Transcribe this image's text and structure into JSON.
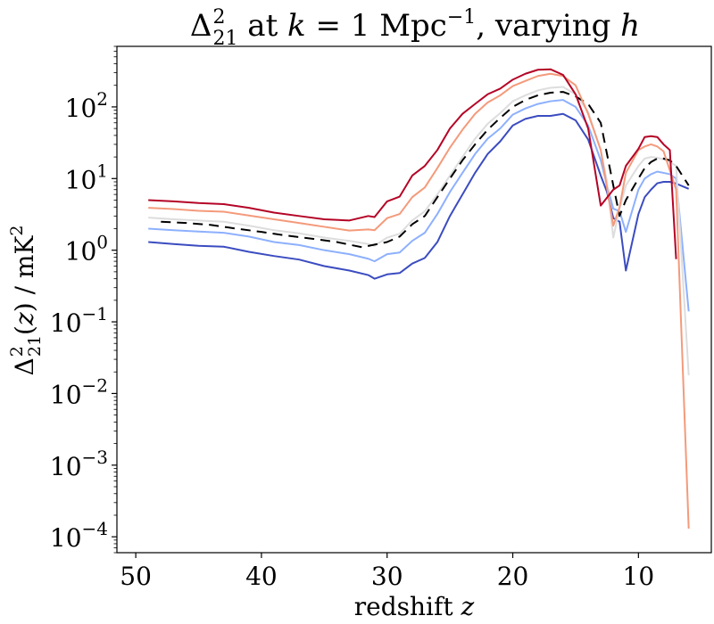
{
  "chart_data": {
    "type": "line",
    "title_parts": {
      "delta": "Δ",
      "sup": "2",
      "sub": "21",
      "at": " at ",
      "k": "k",
      "eq": " = 1 Mpc",
      "exp": "−1",
      "rest": ", varying ",
      "h": "h"
    },
    "xlabel_parts": {
      "text": "redshift ",
      "var": "z"
    },
    "ylabel_parts": {
      "delta": "Δ",
      "sup": "2",
      "sub": "21",
      "paren_open": "(",
      "z": "z",
      "rest": ") / mK",
      "unit_exp": "2"
    },
    "x_ticks": [
      {
        "value": 50,
        "label": "50"
      },
      {
        "value": 40,
        "label": "40"
      },
      {
        "value": 30,
        "label": "30"
      },
      {
        "value": 20,
        "label": "20"
      },
      {
        "value": 10,
        "label": "10"
      }
    ],
    "y_ticks": [
      {
        "value": 0.0001,
        "base": "10",
        "exp": "−4"
      },
      {
        "value": 0.001,
        "base": "10",
        "exp": "−3"
      },
      {
        "value": 0.01,
        "base": "10",
        "exp": "−2"
      },
      {
        "value": 0.1,
        "base": "10",
        "exp": "−1"
      },
      {
        "value": 1,
        "base": "10",
        "exp": "0"
      },
      {
        "value": 10,
        "base": "10",
        "exp": "1"
      },
      {
        "value": 100,
        "base": "10",
        "exp": "2"
      }
    ],
    "xlim": [
      51.5,
      4.2
    ],
    "ylim": [
      6e-05,
      700
    ],
    "yscale": "log",
    "x_inverted": true,
    "grid": false,
    "series": [
      {
        "color": "#3b4cc0",
        "dash": "solid",
        "points": [
          [
            49,
            1.3
          ],
          [
            47,
            1.22
          ],
          [
            45,
            1.15
          ],
          [
            43,
            1.12
          ],
          [
            41,
            0.95
          ],
          [
            39,
            0.83
          ],
          [
            37,
            0.74
          ],
          [
            35,
            0.6
          ],
          [
            33,
            0.52
          ],
          [
            31.5,
            0.45
          ],
          [
            31,
            0.4
          ],
          [
            30,
            0.46
          ],
          [
            29,
            0.48
          ],
          [
            28,
            0.65
          ],
          [
            27,
            0.78
          ],
          [
            26,
            1.3
          ],
          [
            25,
            3
          ],
          [
            24,
            6
          ],
          [
            23,
            12
          ],
          [
            22,
            22
          ],
          [
            21,
            33
          ],
          [
            20,
            55
          ],
          [
            19,
            68
          ],
          [
            18,
            75
          ],
          [
            17,
            75
          ],
          [
            16,
            80
          ],
          [
            15,
            65
          ],
          [
            14,
            35
          ],
          [
            13,
            11
          ],
          [
            12.5,
            6.5
          ],
          [
            12,
            2.8
          ],
          [
            11.5,
            2.5
          ],
          [
            11,
            0.52
          ],
          [
            10,
            3.2
          ],
          [
            9.5,
            5.5
          ],
          [
            9,
            7
          ],
          [
            8.5,
            8.6
          ],
          [
            8,
            9
          ],
          [
            7.5,
            9
          ],
          [
            7,
            8.5
          ],
          [
            6,
            7.2
          ]
        ]
      },
      {
        "color": "#8db0fe",
        "dash": "solid",
        "points": [
          [
            49,
            2
          ],
          [
            47,
            1.9
          ],
          [
            45,
            1.82
          ],
          [
            43,
            1.75
          ],
          [
            41,
            1.55
          ],
          [
            39,
            1.3
          ],
          [
            37,
            1.18
          ],
          [
            35,
            1
          ],
          [
            33,
            0.88
          ],
          [
            31.5,
            0.76
          ],
          [
            31,
            0.7
          ],
          [
            30,
            0.88
          ],
          [
            29,
            0.93
          ],
          [
            28,
            1.35
          ],
          [
            27,
            1.75
          ],
          [
            26,
            3.2
          ],
          [
            25,
            6.5
          ],
          [
            24,
            12
          ],
          [
            23,
            22
          ],
          [
            22,
            36
          ],
          [
            21,
            50
          ],
          [
            20,
            78
          ],
          [
            19,
            95
          ],
          [
            18,
            110
          ],
          [
            17,
            120
          ],
          [
            16,
            125
          ],
          [
            15,
            100
          ],
          [
            14,
            55
          ],
          [
            13,
            18
          ],
          [
            12.5,
            8
          ],
          [
            12,
            3.8
          ],
          [
            11.5,
            3.5
          ],
          [
            11,
            1.8
          ],
          [
            10,
            7
          ],
          [
            9.5,
            10
          ],
          [
            9,
            11.5
          ],
          [
            8.5,
            12.5
          ],
          [
            8,
            12
          ],
          [
            7.5,
            11.5
          ],
          [
            7,
            10
          ],
          [
            6,
            0.14
          ]
        ]
      },
      {
        "color": "#dddddd",
        "dash": "solid",
        "points": [
          [
            49,
            2.85
          ],
          [
            47,
            2.7
          ],
          [
            45,
            2.6
          ],
          [
            43,
            2.5
          ],
          [
            41,
            2.2
          ],
          [
            39,
            1.9
          ],
          [
            37,
            1.72
          ],
          [
            35,
            1.5
          ],
          [
            33,
            1.35
          ],
          [
            31.5,
            1.22
          ],
          [
            31,
            1.15
          ],
          [
            30,
            1.5
          ],
          [
            29,
            1.7
          ],
          [
            28,
            2.6
          ],
          [
            27,
            3.5
          ],
          [
            26,
            6
          ],
          [
            25,
            11
          ],
          [
            24,
            20
          ],
          [
            23,
            36
          ],
          [
            22,
            58
          ],
          [
            21,
            82
          ],
          [
            20,
            120
          ],
          [
            19,
            145
          ],
          [
            18,
            170
          ],
          [
            17,
            185
          ],
          [
            16,
            190
          ],
          [
            15,
            150
          ],
          [
            14,
            85
          ],
          [
            13,
            25
          ],
          [
            12.5,
            9
          ],
          [
            12,
            1.5
          ],
          [
            11.5,
            3.8
          ],
          [
            11,
            8
          ],
          [
            10,
            15
          ],
          [
            9.5,
            19
          ],
          [
            9,
            20
          ],
          [
            8.5,
            19.5
          ],
          [
            8,
            18.5
          ],
          [
            7.5,
            17
          ],
          [
            7,
            15
          ],
          [
            6,
            0.018
          ]
        ]
      },
      {
        "color": "#000000",
        "dash": "dashed",
        "points": [
          [
            48,
            2.5
          ],
          [
            46,
            2.4
          ],
          [
            44,
            2.25
          ],
          [
            42,
            2.0
          ],
          [
            40,
            1.8
          ],
          [
            38,
            1.6
          ],
          [
            36,
            1.45
          ],
          [
            34,
            1.3
          ],
          [
            32,
            1.1
          ],
          [
            30,
            1.3
          ],
          [
            29,
            1.55
          ],
          [
            28,
            2.3
          ],
          [
            27,
            3.0
          ],
          [
            26,
            5.5
          ],
          [
            25,
            10
          ],
          [
            24,
            18
          ],
          [
            23,
            30
          ],
          [
            22,
            48
          ],
          [
            21,
            70
          ],
          [
            20,
            100
          ],
          [
            19,
            125
          ],
          [
            18,
            145
          ],
          [
            17,
            158
          ],
          [
            16,
            162
          ],
          [
            15,
            140
          ],
          [
            14,
            110
          ],
          [
            13,
            60
          ],
          [
            12,
            8
          ],
          [
            11.5,
            3
          ],
          [
            11,
            5
          ],
          [
            10,
            10
          ],
          [
            9.5,
            14
          ],
          [
            9,
            17
          ],
          [
            8.5,
            19
          ],
          [
            8,
            19
          ],
          [
            7.5,
            18
          ],
          [
            7,
            15
          ],
          [
            6,
            8
          ]
        ]
      },
      {
        "color": "#f49a7b",
        "dash": "solid",
        "points": [
          [
            49,
            3.9
          ],
          [
            47,
            3.75
          ],
          [
            45,
            3.55
          ],
          [
            43,
            3.45
          ],
          [
            41,
            3.05
          ],
          [
            39,
            2.7
          ],
          [
            37,
            2.4
          ],
          [
            35,
            2.12
          ],
          [
            33,
            1.88
          ],
          [
            31.5,
            1.95
          ],
          [
            31,
            1.9
          ],
          [
            30,
            2.8
          ],
          [
            29,
            3.2
          ],
          [
            28,
            5.5
          ],
          [
            27,
            7.5
          ],
          [
            26,
            14
          ],
          [
            25,
            27
          ],
          [
            24,
            48
          ],
          [
            23,
            80
          ],
          [
            22,
            115
          ],
          [
            21,
            145
          ],
          [
            20,
            195
          ],
          [
            19,
            230
          ],
          [
            18,
            270
          ],
          [
            17,
            290
          ],
          [
            16,
            270
          ],
          [
            15,
            200
          ],
          [
            14,
            80
          ],
          [
            13,
            25
          ],
          [
            12,
            2.2
          ],
          [
            11.5,
            4
          ],
          [
            11,
            12
          ],
          [
            10,
            25
          ],
          [
            9.5,
            28
          ],
          [
            9,
            30
          ],
          [
            8.5,
            28
          ],
          [
            8,
            24
          ],
          [
            7.5,
            13
          ],
          [
            7,
            7
          ],
          [
            6,
            0.00013
          ]
        ]
      },
      {
        "color": "#b40426",
        "dash": "solid",
        "points": [
          [
            49,
            5
          ],
          [
            47,
            4.8
          ],
          [
            45,
            4.55
          ],
          [
            43,
            4.4
          ],
          [
            41,
            3.9
          ],
          [
            39,
            3.35
          ],
          [
            37,
            3
          ],
          [
            35,
            2.7
          ],
          [
            33,
            2.6
          ],
          [
            31.5,
            3.0
          ],
          [
            31,
            2.9
          ],
          [
            30,
            4.8
          ],
          [
            29,
            5.6
          ],
          [
            28,
            11
          ],
          [
            27,
            15
          ],
          [
            26,
            25
          ],
          [
            25,
            50
          ],
          [
            24,
            80
          ],
          [
            23,
            110
          ],
          [
            22,
            150
          ],
          [
            21,
            180
          ],
          [
            20,
            240
          ],
          [
            19,
            290
          ],
          [
            18,
            330
          ],
          [
            17,
            335
          ],
          [
            16,
            280
          ],
          [
            15,
            150
          ],
          [
            14,
            50
          ],
          [
            13,
            4.2
          ],
          [
            12,
            7
          ],
          [
            11.5,
            8
          ],
          [
            11,
            15
          ],
          [
            10,
            26
          ],
          [
            9.5,
            38
          ],
          [
            9,
            39
          ],
          [
            8.5,
            38
          ],
          [
            8,
            30
          ],
          [
            7.5,
            25
          ],
          [
            7,
            0.75
          ]
        ]
      }
    ]
  }
}
